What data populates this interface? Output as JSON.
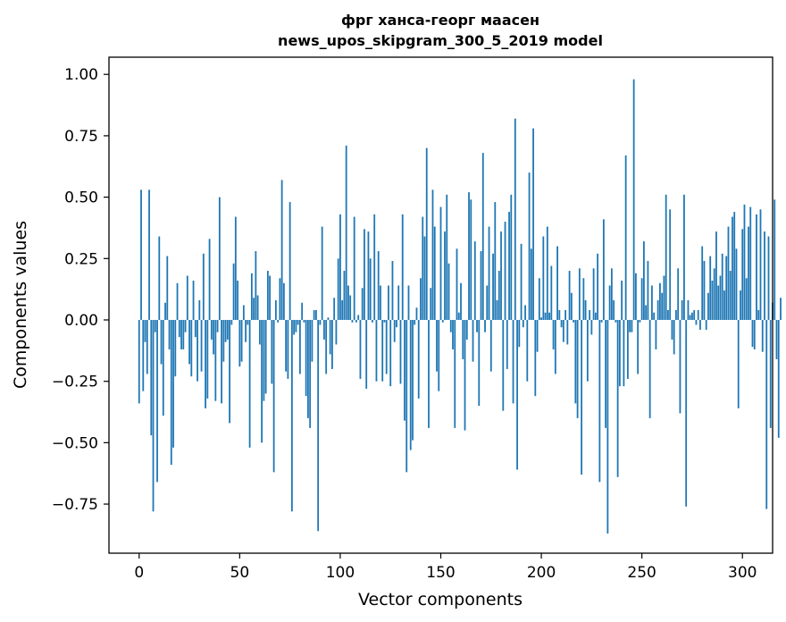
{
  "chart_data": {
    "type": "bar",
    "title": "фрг ханса-георг маасен",
    "subtitle": "news_upos_skipgram_300_5_2019 model",
    "xlabel": "Vector components",
    "ylabel": "Components values",
    "xlim": [
      -15,
      315
    ],
    "ylim": [
      -0.95,
      1.07
    ],
    "xticks": [
      0,
      50,
      100,
      150,
      200,
      250,
      300
    ],
    "xtick_labels": [
      "0",
      "50",
      "100",
      "150",
      "200",
      "250",
      "300"
    ],
    "yticks": [
      -0.75,
      -0.5,
      -0.25,
      0.0,
      0.25,
      0.5,
      0.75,
      1.0
    ],
    "ytick_labels": [
      "−0.75",
      "−0.50",
      "−0.25",
      "0.00",
      "0.25",
      "0.50",
      "0.75",
      "1.00"
    ],
    "color": "#1f77b4",
    "grid": false,
    "legend": "none",
    "x_start": 0,
    "values": [
      -0.34,
      0.53,
      -0.29,
      -0.09,
      -0.22,
      0.53,
      -0.47,
      -0.78,
      -0.05,
      -0.66,
      0.34,
      -0.18,
      -0.39,
      0.07,
      0.26,
      -0.12,
      -0.59,
      -0.52,
      -0.23,
      0.15,
      -0.07,
      -0.12,
      -0.12,
      -0.05,
      0.18,
      -0.18,
      -0.23,
      0.16,
      -0.07,
      -0.25,
      0.08,
      -0.21,
      0.27,
      -0.36,
      -0.32,
      0.33,
      -0.08,
      -0.14,
      -0.33,
      -0.05,
      0.5,
      -0.34,
      -0.17,
      -0.09,
      -0.08,
      -0.42,
      -0.02,
      0.23,
      0.42,
      0.16,
      -0.19,
      -0.17,
      0.06,
      -0.09,
      -0.02,
      -0.52,
      0.19,
      0.09,
      0.28,
      0.1,
      -0.1,
      -0.5,
      -0.33,
      -0.3,
      0.2,
      0.18,
      -0.26,
      -0.62,
      0.08,
      -0.01,
      0.17,
      0.57,
      0.15,
      -0.21,
      -0.24,
      0.48,
      -0.78,
      -0.06,
      -0.05,
      -0.02,
      -0.22,
      0.07,
      -0.01,
      -0.31,
      -0.4,
      -0.44,
      -0.17,
      0.04,
      0.04,
      -0.86,
      -0.02,
      0.38,
      -0.08,
      -0.22,
      0.01,
      -0.14,
      -0.2,
      0.09,
      -0.1,
      0.25,
      0.43,
      0.08,
      0.2,
      0.71,
      0.14,
      0.1,
      -0.01,
      0.42,
      -0.01,
      0.02,
      -0.24,
      0.13,
      0.37,
      -0.28,
      0.36,
      0.25,
      -0.01,
      0.43,
      -0.25,
      0.28,
      0.14,
      -0.25,
      -0.01,
      -0.22,
      0.14,
      -0.27,
      0.24,
      -0.09,
      -0.03,
      0.14,
      -0.26,
      0.43,
      -0.41,
      -0.62,
      0.14,
      -0.53,
      -0.49,
      -0.02,
      0.05,
      -0.32,
      0.17,
      0.42,
      0.34,
      0.7,
      -0.44,
      0.13,
      0.53,
      0.38,
      -0.21,
      -0.29,
      0.46,
      -0.01,
      0.36,
      0.51,
      0.23,
      -0.05,
      -0.12,
      -0.44,
      0.29,
      0.03,
      0.15,
      -0.16,
      -0.45,
      -0.08,
      0.52,
      0.49,
      -0.17,
      0.32,
      -0.05,
      -0.35,
      0.28,
      0.68,
      -0.05,
      0.14,
      0.38,
      -0.21,
      0.27,
      0.48,
      0.08,
      0.2,
      0.36,
      -0.37,
      0.4,
      -0.2,
      0.44,
      0.51,
      -0.34,
      0.82,
      -0.61,
      -0.11,
      0.31,
      -0.03,
      0.06,
      -0.25,
      0.6,
      0.29,
      0.78,
      -0.31,
      -0.13,
      0.17,
      0.01,
      0.34,
      0.03,
      0.38,
      0.03,
      0.22,
      -0.12,
      -0.22,
      0.3,
      0.04,
      -0.03,
      -0.09,
      0.04,
      -0.1,
      0.2,
      0.11,
      -0.01,
      -0.34,
      -0.4,
      0.21,
      -0.63,
      0.17,
      0.08,
      -0.25,
      0.04,
      -0.06,
      0.21,
      0.03,
      0.27,
      -0.66,
      -0.01,
      0.41,
      -0.44,
      -0.87,
      0.14,
      0.21,
      0.08,
      -0.01,
      -0.64,
      -0.27,
      0.16,
      -0.27,
      0.67,
      -0.24,
      -0.05,
      -0.05,
      0.98,
      0.19,
      -0.22,
      -0.01,
      0.17,
      0.32,
      0.06,
      0.24,
      -0.4,
      0.14,
      0.03,
      -0.12,
      0.08,
      0.15,
      0.11,
      0.18,
      0.51,
      0.04,
      0.45,
      -0.08,
      -0.14,
      0.04,
      0.21,
      -0.38,
      0.08,
      0.51,
      -0.76,
      0.08,
      0.02,
      0.03,
      0.04,
      -0.02,
      0.04,
      -0.04,
      0.3,
      0.24,
      -0.04,
      0.11,
      0.26,
      0.16,
      0.21,
      0.36,
      0.14,
      0.18,
      0.27,
      0.12,
      0.26,
      0.38,
      0.2,
      0.42,
      0.44,
      0.29,
      -0.36,
      0.12,
      0.37,
      0.47,
      0.17,
      0.38,
      0.46,
      -0.11,
      -0.12,
      0.43,
      0.04,
      0.45,
      -0.13,
      0.36,
      -0.77,
      0.34,
      -0.44,
      0.07,
      0.49,
      -0.16,
      -0.48,
      0.09
    ]
  }
}
